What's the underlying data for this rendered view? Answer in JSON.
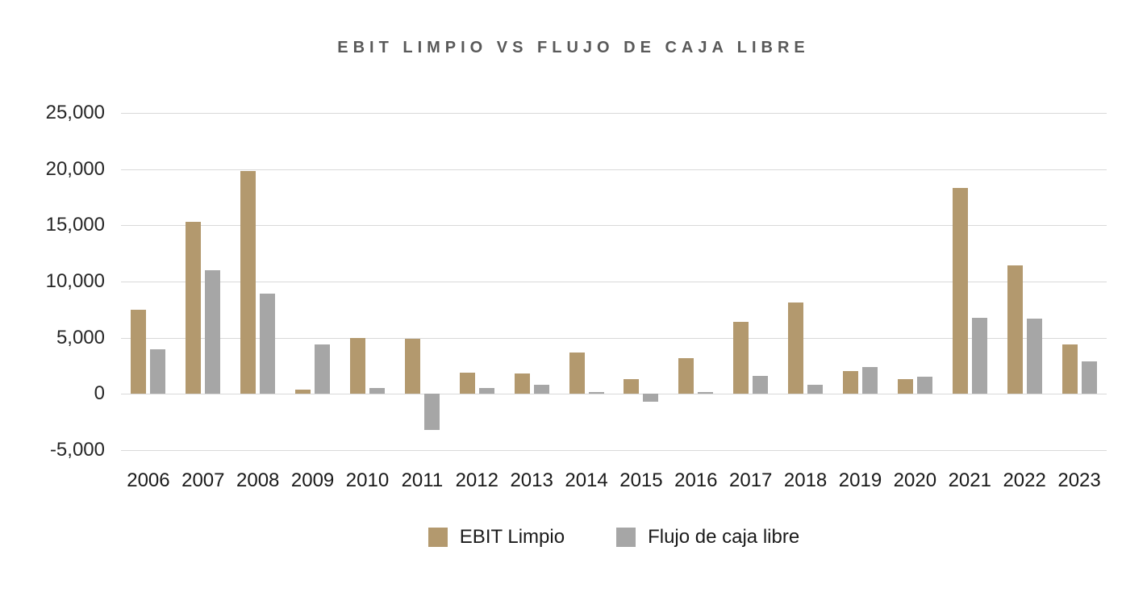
{
  "title": "EBIT LIMPIO VS FLUJO DE CAJA LIBRE",
  "colors": {
    "ebit": "#B3996E",
    "fcf": "#A6A6A6",
    "title_text": "#595959",
    "axis_text": "#262626",
    "gridline": "#D9D9D9",
    "background": "#FFFFFF"
  },
  "chart_data": {
    "type": "bar",
    "title": "EBIT LIMPIO VS FLUJO DE CAJA LIBRE",
    "categories": [
      "2006",
      "2007",
      "2008",
      "2009",
      "2010",
      "2011",
      "2012",
      "2013",
      "2014",
      "2015",
      "2016",
      "2017",
      "2018",
      "2019",
      "2020",
      "2021",
      "2022",
      "2023"
    ],
    "series": [
      {
        "name": "EBIT Limpio",
        "color": "#B3996E",
        "values": [
          7500,
          15300,
          19800,
          400,
          5000,
          4900,
          1900,
          1800,
          3700,
          1300,
          3200,
          6400,
          8100,
          2000,
          1300,
          18300,
          11400,
          4400
        ]
      },
      {
        "name": "Flujo de caja libre",
        "color": "#A6A6A6",
        "values": [
          4000,
          11000,
          8900,
          4400,
          550,
          -3200,
          500,
          800,
          150,
          -700,
          200,
          1600,
          800,
          2400,
          1500,
          6800,
          6700,
          2900
        ]
      }
    ],
    "xlabel": "",
    "ylabel": "",
    "ylim": [
      -5000,
      25000
    ],
    "y_ticks": [
      {
        "value": 25000,
        "label": "25,000"
      },
      {
        "value": 20000,
        "label": "20,000"
      },
      {
        "value": 15000,
        "label": "15,000"
      },
      {
        "value": 10000,
        "label": "10,000"
      },
      {
        "value": 5000,
        "label": "5,000"
      },
      {
        "value": 0,
        "label": "0"
      },
      {
        "value": -5000,
        "label": "-5,000"
      }
    ],
    "grid": true,
    "legend_position": "bottom"
  }
}
